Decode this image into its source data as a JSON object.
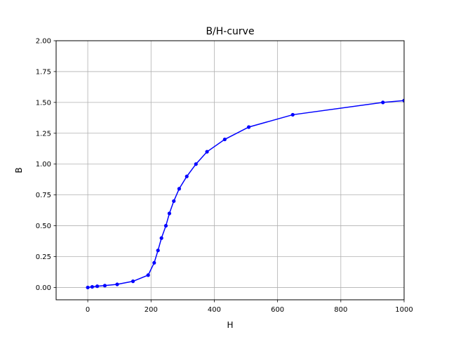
{
  "chart_data": {
    "type": "line",
    "title": "B/H-curve",
    "xlabel": "H",
    "ylabel": "B",
    "xlim": [
      -100,
      1000
    ],
    "ylim": [
      -0.1,
      2.0
    ],
    "xticks": [
      0,
      200,
      400,
      600,
      800,
      1000
    ],
    "xtick_labels": [
      "0",
      "200",
      "400",
      "600",
      "800",
      "1000"
    ],
    "yticks": [
      0.0,
      0.25,
      0.5,
      0.75,
      1.0,
      1.25,
      1.5,
      1.75,
      2.0
    ],
    "ytick_labels": [
      "0.00",
      "0.25",
      "0.50",
      "0.75",
      "1.00",
      "1.25",
      "1.50",
      "1.75",
      "2.00"
    ],
    "grid": true,
    "series": [
      {
        "color": "#0000ff",
        "marker": "circle",
        "x": [
          0,
          14,
          30,
          54,
          93,
          143,
          191,
          210,
          222,
          233,
          247,
          258,
          272,
          289,
          313,
          342,
          377,
          433,
          509,
          648,
          933,
          1000
        ],
        "y": [
          0.0,
          0.005,
          0.01,
          0.015,
          0.025,
          0.05,
          0.1,
          0.2,
          0.3,
          0.4,
          0.5,
          0.6,
          0.7,
          0.8,
          0.9,
          1.0,
          1.1,
          1.2,
          1.3,
          1.4,
          1.5,
          1.515
        ]
      }
    ]
  }
}
